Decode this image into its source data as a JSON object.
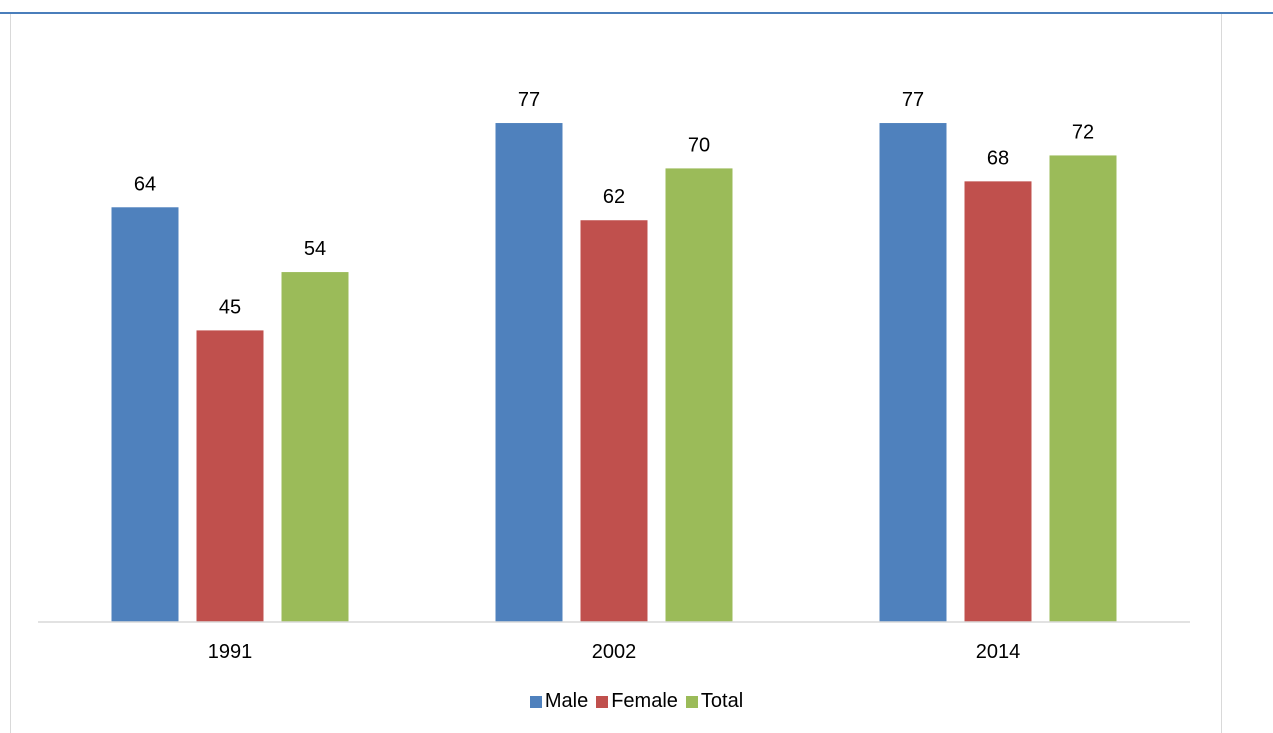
{
  "chart_data": {
    "type": "bar",
    "categories": [
      "1991",
      "2002",
      "2014"
    ],
    "series": [
      {
        "name": "Male",
        "values": [
          64,
          77,
          77
        ],
        "color": "#4f81bd"
      },
      {
        "name": "Female",
        "values": [
          45,
          62,
          68
        ],
        "color": "#c0504d"
      },
      {
        "name": "Total",
        "values": [
          54,
          70,
          72
        ],
        "color": "#9bbb59"
      }
    ],
    "title": "",
    "xlabel": "",
    "ylabel": "",
    "ylim": [
      0,
      100
    ],
    "grid": false,
    "legend": "bottom",
    "data_labels": true
  }
}
